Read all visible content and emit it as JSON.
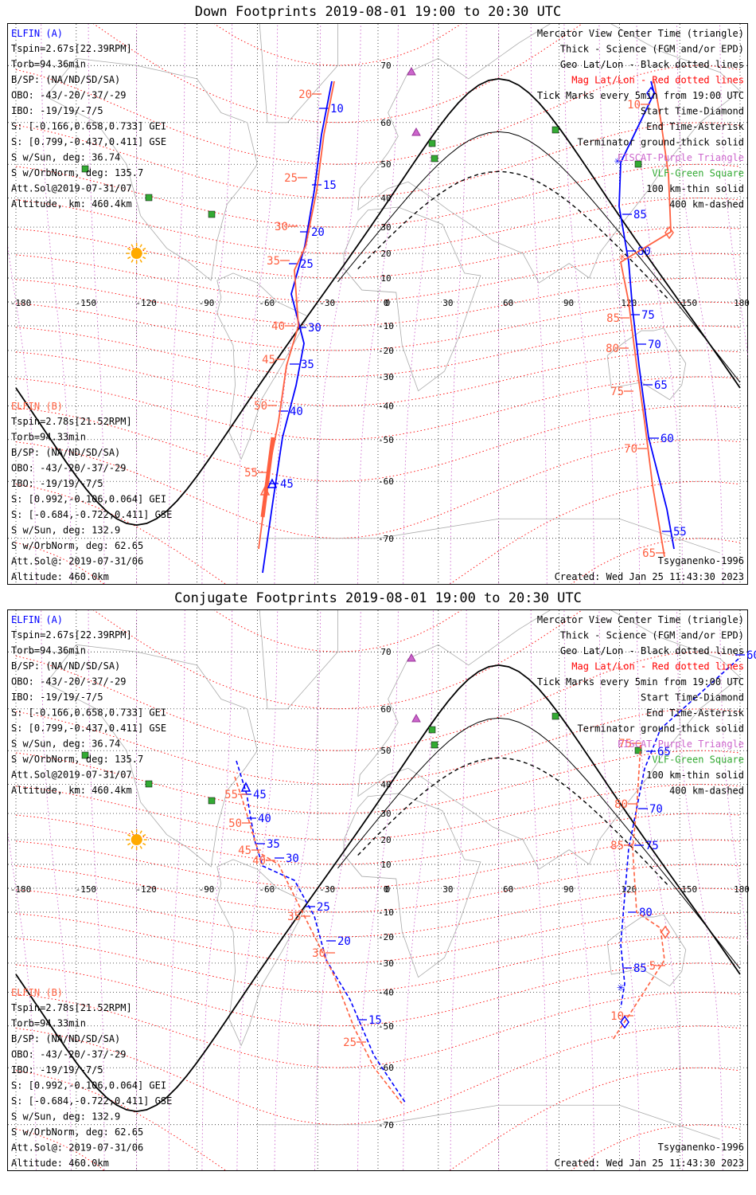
{
  "panels": [
    {
      "title": "Down Footprints 2019-08-01 19:00 to 20:30 UTC",
      "elfin_a": {
        "name": "ELFIN (A)",
        "lines": [
          "Tspin=2.67s[22.39RPM]",
          "Torb=94.36min",
          "B/SP: (NA/ND/SD/SA)",
          "OBO: -43/-20/-37/-29",
          "IBO: -19/19/-7/5",
          "S: [-0.166,0.658,0.733] GEI",
          "S: [0.799,-0.437,0.411] GSE",
          "S w/Sun, deg: 36.74",
          "S w/OrbNorm, deg: 135.7",
          "Att.Sol@2019-07-31/07",
          "Altitude, km: 460.4km"
        ]
      },
      "elfin_b": {
        "name": "ELFIN (B)",
        "lines": [
          "Tspin=2.78s[21.52RPM]",
          "Torb=94.33min",
          "B/SP: (NA/ND/SD/SA)",
          "OBO: -43/-20/-37/-29",
          "IBO: -19/19/-7/5",
          "S: [0.992,-0.106,0.064] GEI",
          "S: [-0.684,-0.722,0.411] GSE",
          "S w/Sun, deg: 132.9",
          "S w/OrbNorm, deg: 62.65",
          "Att.Sol@: 2019-07-31/06",
          "Altitude: 460.0km"
        ]
      },
      "legend": [
        "Mercator View Center Time (triangle)",
        "Thick - Science (FGM and/or EPD)",
        "Geo Lat/Lon - Black dotted lines",
        "Mag Lat/Lon - Red dotted lines",
        "Tick Marks every 5min from 19:00 UTC",
        "Start Time-Diamond",
        "End Time-Asterisk",
        "Terminator ground-thick solid",
        "EISCAT-Purple Triangle",
        "VLF-Green Square",
        "100 km-thin solid",
        "400 km-dashed"
      ],
      "model": "Tsyganenko-1996",
      "created": "Created: Wed Jan 25 11:43:30 2023"
    },
    {
      "title": "Conjugate Footprints 2019-08-01 19:00 to 20:30 UTC",
      "elfin_a": {
        "name": "ELFIN (A)",
        "lines": [
          "Tspin=2.67s[22.39RPM]",
          "Torb=94.36min",
          "B/SP: (NA/ND/SD/SA)",
          "OBO: -43/-20/-37/-29",
          "IBO: -19/19/-7/5",
          "S: [-0.166,0.658,0.733] GEI",
          "S: [0.799,-0.437,0.411] GSE",
          "S w/Sun, deg: 36.74",
          "S w/OrbNorm, deg: 135.7",
          "Att.Sol@2019-07-31/07",
          "Altitude, km: 460.4km"
        ]
      },
      "elfin_b": {
        "name": "ELFIN (B)",
        "lines": [
          "Tspin=2.78s[21.52RPM]",
          "Torb=94.33min",
          "B/SP: (NA/ND/SD/SA)",
          "OBO: -43/-20/-37/-29",
          "IBO: -19/19/-7/5",
          "S: [0.992,-0.106,0.064] GEI",
          "S: [-0.684,-0.722,0.411] GSE",
          "S w/Sun, deg: 132.9",
          "S w/OrbNorm, deg: 62.65",
          "Att.Sol@: 2019-07-31/06",
          "Altitude: 460.0km"
        ]
      },
      "legend": [
        "Mercator View Center Time (triangle)",
        "Thick - Science (FGM and/or EPD)",
        "Geo Lat/Lon - Black dotted lines",
        "Mag Lat/Lon - Red dotted lines",
        "Tick Marks every 5min from 19:00 UTC",
        "Start Time-Diamond",
        "End Time-Asterisk",
        "Terminator ground-thick solid",
        "EISCAT-Purple Triangle",
        "VLF-Green Square",
        "100 km-thin solid",
        "400 km-dashed"
      ],
      "model": "Tsyganenko-1996",
      "created": "Created: Wed Jan 25 11:43:30 2023"
    }
  ],
  "lon_labels": [
    "-180",
    "-150",
    "-120",
    "-90",
    "-60",
    "-30",
    "0",
    "30",
    "60",
    "90",
    "120",
    "150",
    "180"
  ],
  "lat_labels": [
    "70",
    "60",
    "50",
    "40",
    "30",
    "20",
    "10",
    "0",
    "-10",
    "-20",
    "-30",
    "-40",
    "-50",
    "-60",
    "-70"
  ],
  "colors": {
    "elfin_a": "#0000ff",
    "elfin_b": "#ff6040",
    "mag_grid": "#ff0000",
    "geo_grid": "#cc66cc",
    "legend_mag": "#ff0000",
    "legend_eiscat": "#cc66cc",
    "legend_vlf": "#33aa33",
    "sun": "#ffaa00"
  },
  "down_a_ticks": [
    "10",
    "15",
    "20",
    "25",
    "30",
    "35",
    "40",
    "45",
    "55",
    "60",
    "65",
    "70",
    "75",
    "80",
    "85"
  ],
  "down_b_ticks": [
    "20",
    "25",
    "30",
    "35",
    "40",
    "45",
    "50",
    "55",
    "65",
    "70",
    "75",
    "80",
    "85",
    "10"
  ],
  "conj_a_ticks": [
    "45",
    "40",
    "35",
    "30",
    "25",
    "20",
    "15",
    "85",
    "80",
    "75",
    "70",
    "65",
    "60"
  ],
  "conj_b_ticks": [
    "55",
    "50",
    "45",
    "40",
    "35",
    "30",
    "25",
    "10",
    "5",
    "85",
    "80",
    "75"
  ]
}
